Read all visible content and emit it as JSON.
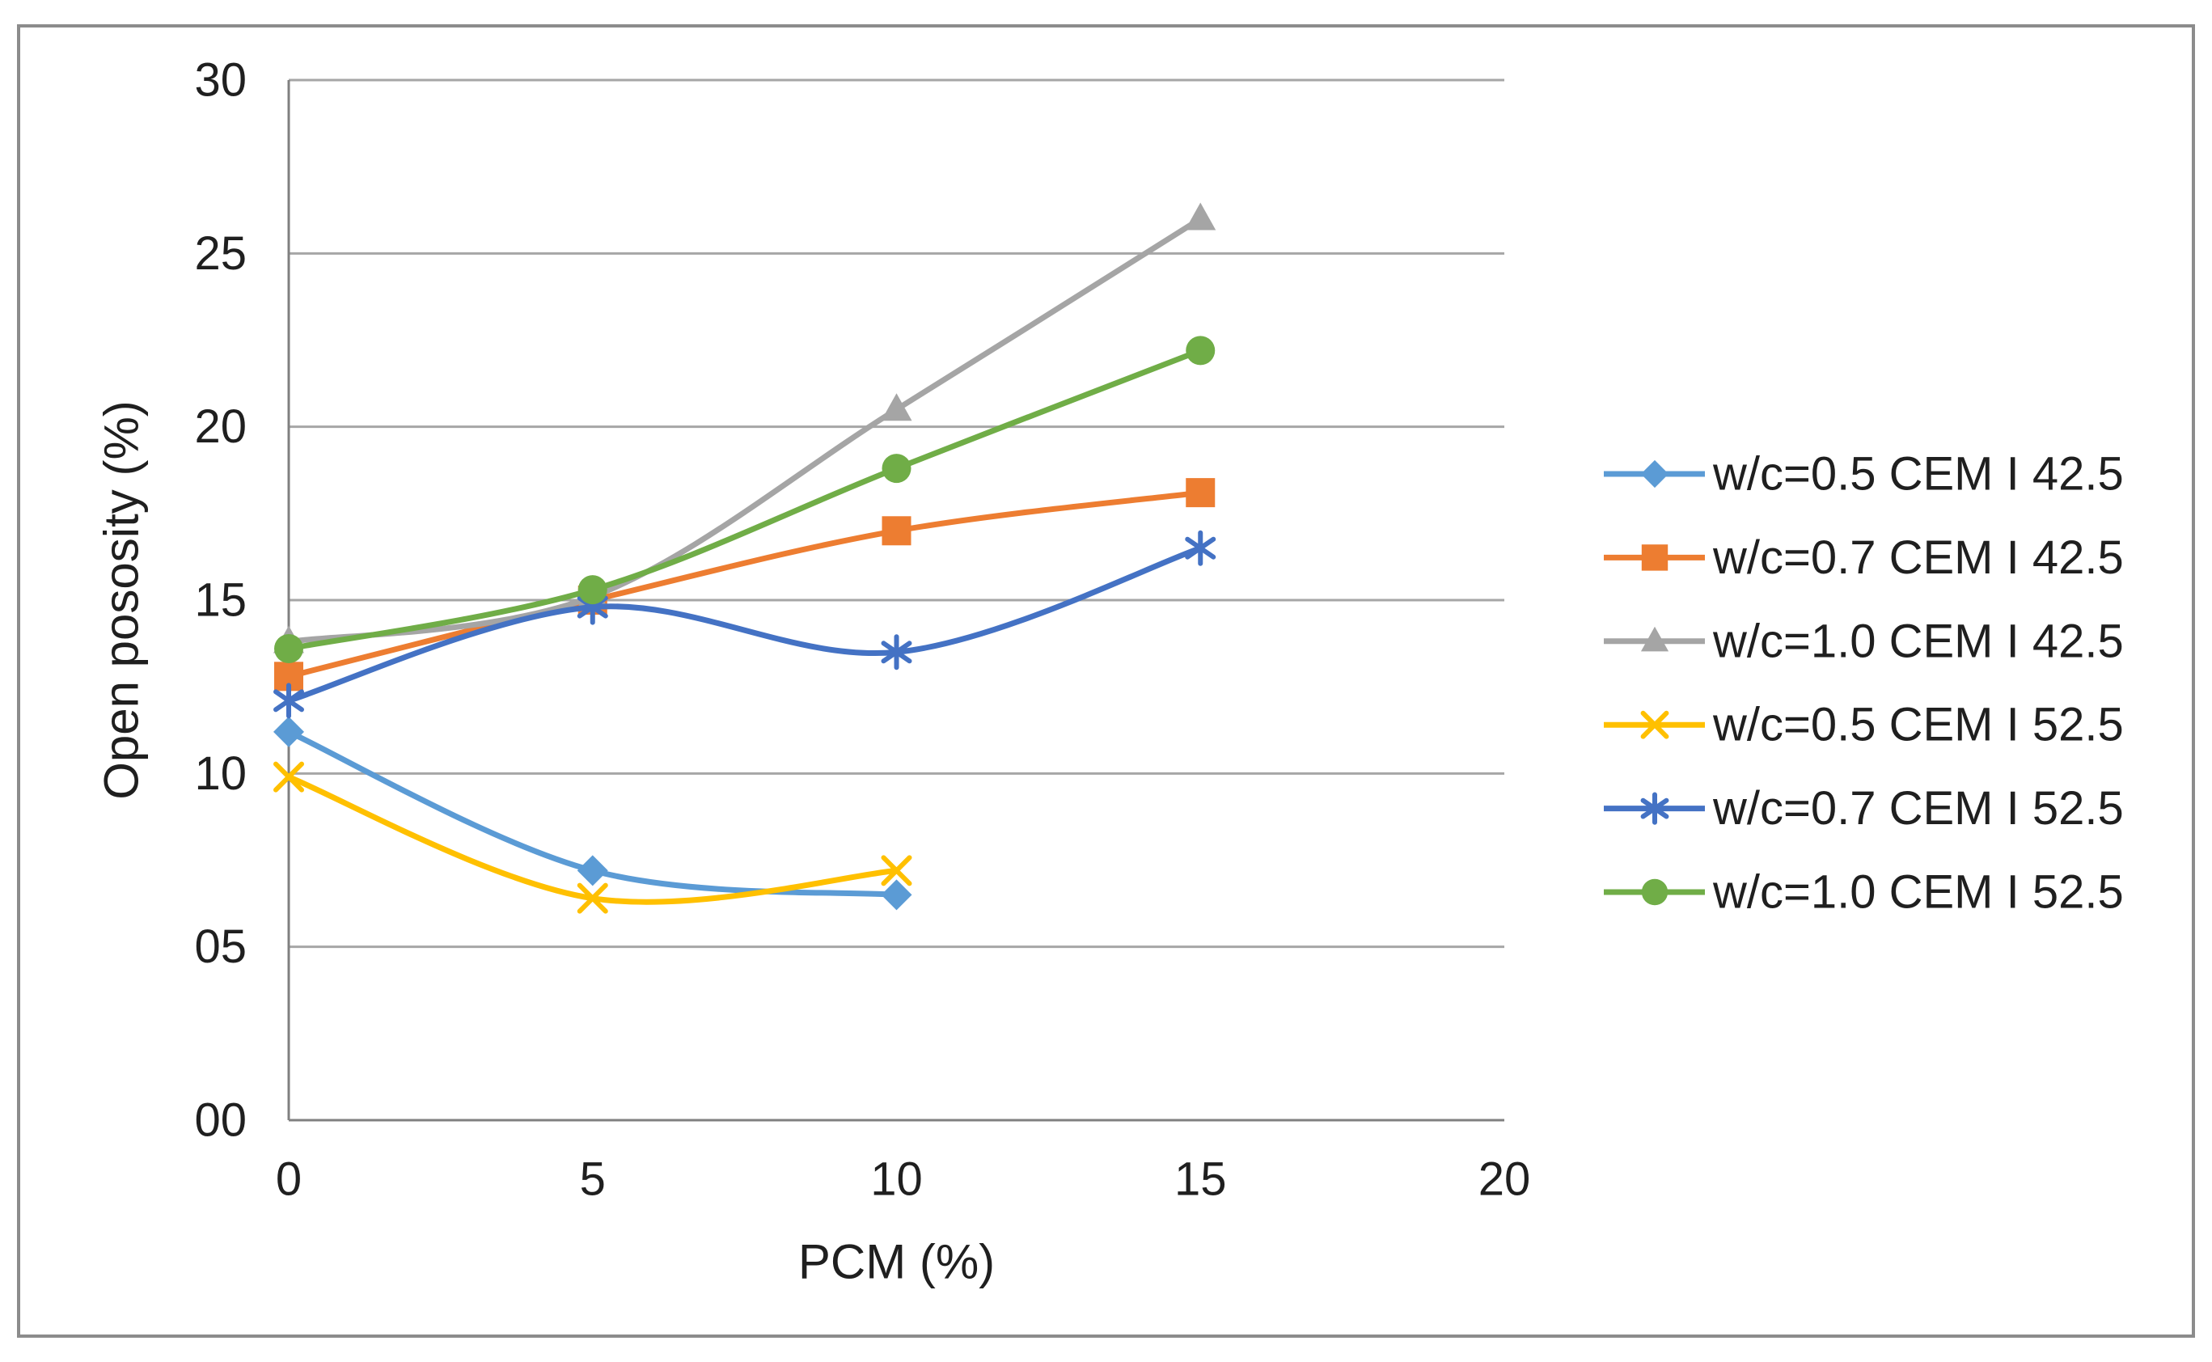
{
  "figure": {
    "background": "#ffffff",
    "border_color": "#8c8c8c",
    "text_color": "#1f1f1f",
    "grid_color": "#a6a6a6",
    "axis_color": "#808080"
  },
  "chart_data": {
    "type": "line",
    "title": "",
    "xlabel": "PCM (%)",
    "ylabel": "Open pososity (%)",
    "xlim": [
      0,
      20
    ],
    "ylim": [
      0,
      30
    ],
    "x_ticks": [
      0,
      5,
      10,
      15,
      20
    ],
    "x_tick_labels": [
      "0",
      "5",
      "10",
      "15",
      "20"
    ],
    "y_ticks": [
      0,
      5,
      10,
      15,
      20,
      25,
      30
    ],
    "y_tick_labels": [
      "00",
      "05",
      "10",
      "15",
      "20",
      "25",
      "30"
    ],
    "grid": "horizontal",
    "smooth_lines": true,
    "legend_position": "right",
    "series": [
      {
        "name": "w/c=0.5 CEM I 42.5",
        "color": "#5B9BD5",
        "marker": "diamond",
        "x": [
          0,
          5,
          10
        ],
        "y": [
          11.2,
          7.2,
          6.5
        ]
      },
      {
        "name": "w/c=0.7 CEM I 42.5",
        "color": "#ED7D31",
        "marker": "square",
        "x": [
          0,
          5,
          10,
          15
        ],
        "y": [
          12.8,
          15.0,
          17.0,
          18.1
        ]
      },
      {
        "name": "w/c=1.0 CEM I 42.5",
        "color": "#A5A5A5",
        "marker": "triangle",
        "x": [
          0,
          5,
          10,
          15
        ],
        "y": [
          13.8,
          15.1,
          20.5,
          26.0
        ]
      },
      {
        "name": "w/c=0.5 CEM I 52.5",
        "color": "#FFC000",
        "marker": "x",
        "x": [
          0,
          5,
          10
        ],
        "y": [
          9.9,
          6.4,
          7.2
        ]
      },
      {
        "name": "w/c=0.7 CEM I 52.5",
        "color": "#4472C4",
        "marker": "asterisk",
        "x": [
          0,
          5,
          10,
          15
        ],
        "y": [
          12.1,
          14.8,
          13.5,
          16.5
        ]
      },
      {
        "name": "w/c=1.0 CEM I 52.5",
        "color": "#70AD47",
        "marker": "circle",
        "x": [
          0,
          5,
          10,
          15
        ],
        "y": [
          13.6,
          15.3,
          18.8,
          22.2
        ]
      }
    ]
  }
}
